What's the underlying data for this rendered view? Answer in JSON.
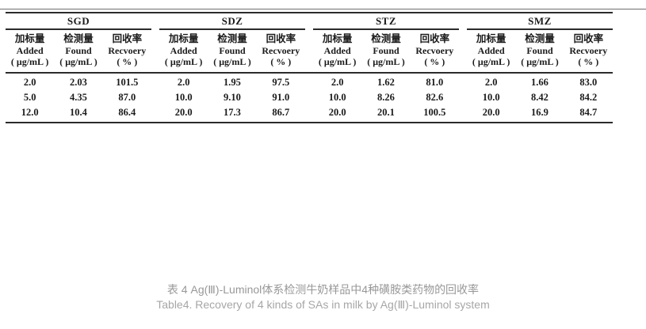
{
  "colors": {
    "table_text": "#1b1b1b",
    "rule": "#2b2b2b",
    "caption_gray": "#989898"
  },
  "table": {
    "column_headers": [
      {
        "zh": "加标量",
        "en": "Added",
        "unit": "( μg/mL )"
      },
      {
        "zh": "检测量",
        "en": "Found",
        "unit": "( μg/mL )"
      },
      {
        "zh": "回收率",
        "en": "Recvoery",
        "unit": "( % )"
      }
    ],
    "groups": [
      {
        "name": "SGD",
        "rows": [
          [
            "2.0",
            "2.03",
            "101.5"
          ],
          [
            "5.0",
            "4.35",
            "87.0"
          ],
          [
            "12.0",
            "10.4",
            "86.4"
          ]
        ]
      },
      {
        "name": "SDZ",
        "rows": [
          [
            "2.0",
            "1.95",
            "97.5"
          ],
          [
            "10.0",
            "9.10",
            "91.0"
          ],
          [
            "20.0",
            "17.3",
            "86.7"
          ]
        ]
      },
      {
        "name": "STZ",
        "rows": [
          [
            "2.0",
            "1.62",
            "81.0"
          ],
          [
            "10.0",
            "8.26",
            "82.6"
          ],
          [
            "20.0",
            "20.1",
            "100.5"
          ]
        ]
      },
      {
        "name": "SMZ",
        "rows": [
          [
            "2.0",
            "1.66",
            "83.0"
          ],
          [
            "10.0",
            "8.42",
            "84.2"
          ],
          [
            "20.0",
            "16.9",
            "84.7"
          ]
        ]
      }
    ]
  },
  "caption": {
    "zh": "表 4 Ag(Ⅲ)-Luminol体系检测牛奶样品中4种磺胺类药物的回收率",
    "en": "Table4. Recovery of 4 kinds of SAs in milk by Ag(Ⅲ)-Luminol system"
  }
}
